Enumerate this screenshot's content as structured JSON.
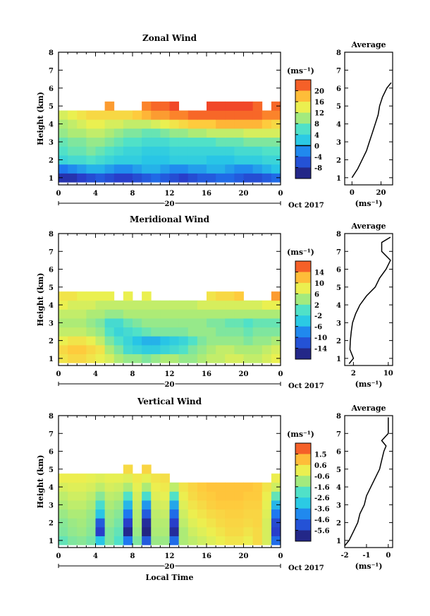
{
  "chart_data": [
    {
      "type": "heatmap",
      "title": "Zonal Wind",
      "ylabel": "Height (km)",
      "xticks": [
        "0",
        "4",
        "8",
        "12",
        "16",
        "20",
        "0"
      ],
      "xlim": [
        0,
        24
      ],
      "yticks": [
        "1",
        "2",
        "3",
        "4",
        "5",
        "6",
        "7",
        "8"
      ],
      "ylim": [
        0.6,
        8
      ],
      "date_day": "20",
      "date_label": "Oct 2017",
      "colorbar": {
        "unit": "(ms⁻¹)",
        "ticks": [
          "20",
          "16",
          "12",
          "8",
          "4",
          "0",
          "-4",
          "-8"
        ],
        "range": [
          -10,
          22
        ],
        "contour_at": "0"
      },
      "rows": [
        {
          "z": 1.0,
          "values": [
            -7,
            -7,
            -6,
            -5,
            -4,
            -5,
            -6,
            -6,
            -5,
            -4,
            -3,
            -4,
            -5,
            -6,
            -5,
            -4,
            -4,
            -3,
            -3,
            -4,
            -5,
            -5,
            -4,
            -3
          ]
        },
        {
          "z": 1.5,
          "values": [
            -2,
            -1,
            0,
            1,
            1,
            0,
            -1,
            -1,
            0,
            1,
            1,
            0,
            -1,
            -1,
            0,
            0,
            1,
            1,
            0,
            -1,
            -1,
            0,
            1,
            2
          ]
        },
        {
          "z": 2.0,
          "values": [
            4,
            5,
            5,
            6,
            5,
            4,
            3,
            3,
            3,
            2,
            2,
            2,
            3,
            3,
            3,
            3,
            2,
            2,
            2,
            3,
            3,
            3,
            4,
            4
          ]
        },
        {
          "z": 2.5,
          "values": [
            6,
            7,
            7,
            8,
            7,
            6,
            5,
            4,
            4,
            3,
            3,
            3,
            4,
            4,
            4,
            4,
            4,
            4,
            4,
            5,
            5,
            5,
            6,
            6
          ]
        },
        {
          "z": 3.0,
          "values": [
            7,
            8,
            8,
            9,
            9,
            8,
            7,
            6,
            6,
            5,
            5,
            5,
            6,
            6,
            6,
            6,
            6,
            7,
            7,
            7,
            8,
            8,
            8,
            8
          ]
        },
        {
          "z": 3.5,
          "values": [
            9,
            10,
            10,
            11,
            11,
            10,
            9,
            8,
            8,
            7,
            7,
            8,
            9,
            9,
            10,
            10,
            11,
            11,
            11,
            11,
            12,
            12,
            12,
            12
          ]
        },
        {
          "z": 4.0,
          "values": [
            10,
            11,
            12,
            13,
            13,
            12,
            12,
            11,
            11,
            11,
            12,
            13,
            14,
            15,
            16,
            16,
            16,
            17,
            17,
            17,
            17,
            17,
            16,
            15
          ]
        },
        {
          "z": 4.5,
          "values": [
            12,
            13,
            14,
            15,
            15,
            15,
            15,
            15,
            16,
            17,
            18,
            18,
            19,
            19,
            20,
            20,
            20,
            20,
            20,
            20,
            20,
            20,
            19,
            19
          ]
        },
        {
          "z": 5.0,
          "values": [
            null,
            null,
            null,
            null,
            null,
            18,
            null,
            null,
            null,
            19,
            20,
            20,
            21,
            null,
            null,
            null,
            21,
            21,
            21,
            21,
            21,
            20,
            null,
            20
          ]
        }
      ],
      "average_profile": {
        "title": "Average",
        "xlabel": "(ms⁻¹)",
        "xticks": [
          "0",
          "20"
        ],
        "xlim": [
          -5,
          28
        ],
        "yticks": [
          "1",
          "2",
          "3",
          "4",
          "5",
          "6",
          "7",
          "8"
        ],
        "heights": [
          1.0,
          1.5,
          2.0,
          2.5,
          3.0,
          3.5,
          4.0,
          4.5,
          5.0,
          5.5,
          6.0,
          6.3
        ],
        "values": [
          0,
          4,
          7,
          10,
          12,
          14,
          16,
          18,
          19,
          21,
          24,
          27
        ]
      }
    },
    {
      "type": "heatmap",
      "title": "Meridional Wind",
      "ylabel": "Height (km)",
      "xticks": [
        "0",
        "4",
        "8",
        "12",
        "16",
        "20",
        "0"
      ],
      "xlim": [
        0,
        24
      ],
      "yticks": [
        "1",
        "2",
        "3",
        "4",
        "5",
        "6",
        "7",
        "8"
      ],
      "ylim": [
        0.6,
        8
      ],
      "date_day": "20",
      "date_label": "Oct 2017",
      "colorbar": {
        "unit": "(ms⁻¹)",
        "ticks": [
          "14",
          "10",
          "6",
          "2",
          "-2",
          "-6",
          "-10",
          "-14"
        ],
        "range": [
          -16,
          16
        ],
        "contour_at": "0"
      },
      "rows": [
        {
          "z": 1.0,
          "values": [
            8,
            9,
            9,
            8,
            7,
            6,
            4,
            3,
            3,
            2,
            3,
            4,
            4,
            3,
            3,
            4,
            5,
            5,
            6,
            6,
            5,
            5,
            6,
            7
          ]
        },
        {
          "z": 1.5,
          "values": [
            9,
            10,
            10,
            9,
            8,
            4,
            2,
            -1,
            -2,
            -3,
            -3,
            -2,
            -1,
            0,
            2,
            3,
            4,
            5,
            5,
            4,
            4,
            4,
            5,
            6
          ]
        },
        {
          "z": 2.0,
          "values": [
            7,
            8,
            8,
            7,
            5,
            2,
            0,
            -2,
            -4,
            -5,
            -5,
            -4,
            -3,
            -2,
            0,
            2,
            3,
            3,
            3,
            3,
            2,
            3,
            3,
            4
          ]
        },
        {
          "z": 2.5,
          "values": [
            5,
            5,
            5,
            4,
            3,
            0,
            -2,
            -1,
            0,
            1,
            2,
            2,
            2,
            2,
            3,
            3,
            3,
            2,
            2,
            2,
            1,
            2,
            2,
            2
          ]
        },
        {
          "z": 3.0,
          "values": [
            4,
            4,
            4,
            3,
            2,
            -1,
            -1,
            1,
            2,
            3,
            3,
            3,
            3,
            3,
            3,
            3,
            2,
            2,
            1,
            1,
            0,
            1,
            1,
            1
          ]
        },
        {
          "z": 3.5,
          "values": [
            5,
            5,
            5,
            4,
            4,
            3,
            3,
            4,
            4,
            4,
            4,
            4,
            4,
            4,
            4,
            4,
            4,
            4,
            4,
            4,
            4,
            4,
            4,
            4
          ]
        },
        {
          "z": 4.0,
          "values": [
            7,
            6,
            6,
            6,
            5,
            5,
            5,
            5,
            5,
            5,
            5,
            5,
            5,
            5,
            5,
            6,
            6,
            6,
            6,
            6,
            6,
            6,
            7,
            7
          ]
        },
        {
          "z": 4.5,
          "values": [
            8,
            8,
            7,
            7,
            7,
            7,
            null,
            7,
            null,
            7,
            null,
            null,
            null,
            null,
            null,
            null,
            8,
            9,
            9,
            10,
            null,
            null,
            null,
            12
          ]
        }
      ],
      "average_profile": {
        "title": "Average",
        "xlabel": "(ms⁻¹)",
        "xticks": [
          "2",
          "10"
        ],
        "xlim": [
          0,
          11
        ],
        "yticks": [
          "1",
          "2",
          "3",
          "4",
          "5",
          "6",
          "7",
          "8"
        ],
        "heights": [
          0.7,
          1.0,
          1.5,
          2.0,
          2.5,
          3.0,
          3.5,
          4.0,
          4.5,
          5.0,
          5.5,
          6.0,
          6.5,
          7.0,
          7.5,
          7.8
        ],
        "values": [
          1.0,
          2.0,
          1.2,
          1.3,
          1.5,
          1.8,
          2.5,
          3.5,
          5.0,
          7.0,
          8.0,
          9.5,
          10.5,
          8.5,
          8.5,
          10.5
        ]
      }
    },
    {
      "type": "heatmap",
      "title": "Vertical Wind",
      "ylabel": "Height (km)",
      "xticks": [
        "0",
        "4",
        "8",
        "12",
        "16",
        "20",
        "0"
      ],
      "xlim": [
        0,
        24
      ],
      "xlabel": "Local Time",
      "yticks": [
        "1",
        "2",
        "3",
        "4",
        "5",
        "6",
        "7",
        "8"
      ],
      "ylim": [
        0.6,
        8
      ],
      "date_day": "20",
      "date_label": "Oct 2017",
      "colorbar": {
        "unit": "(ms⁻¹)",
        "ticks": [
          "1.5",
          "0.6",
          "-0.6",
          "-1.6",
          "-2.6",
          "-3.6",
          "-4.6",
          "-5.6"
        ],
        "range": [
          -6.0,
          2.0
        ],
        "contour_at": null
      },
      "rows": [
        {
          "z": 1.0,
          "values": [
            -1.8,
            -1.5,
            -1.4,
            -1.6,
            -3.0,
            -1.5,
            -2.0,
            -4.0,
            -1.5,
            -4.5,
            -1.2,
            -1.2,
            -4.2,
            -1.0,
            -0.8,
            -0.6,
            -0.4,
            -0.2,
            0.0,
            0.0,
            -0.2,
            0.2,
            -0.5,
            -4.2
          ]
        },
        {
          "z": 1.5,
          "values": [
            -1.5,
            -1.3,
            -1.2,
            -1.4,
            -5.0,
            -1.5,
            -1.8,
            -5.5,
            -1.2,
            -5.6,
            -1.0,
            -1.0,
            -5.4,
            -1.0,
            -0.6,
            -0.4,
            -0.2,
            0.0,
            0.2,
            0.2,
            0.0,
            0.2,
            -0.5,
            -5.0
          ]
        },
        {
          "z": 2.0,
          "values": [
            -1.4,
            -1.2,
            -1.1,
            -1.3,
            -4.5,
            -1.3,
            -1.6,
            -5.0,
            -1.0,
            -5.4,
            -0.9,
            -0.9,
            -5.0,
            -0.8,
            -0.4,
            -0.2,
            0.0,
            0.2,
            0.3,
            0.3,
            0.2,
            0.3,
            -0.5,
            -4.8
          ]
        },
        {
          "z": 2.5,
          "values": [
            -1.2,
            -1.0,
            -1.0,
            -1.2,
            -3.0,
            -1.2,
            -1.4,
            -4.0,
            -0.9,
            -4.5,
            -0.8,
            -0.7,
            -4.2,
            -0.6,
            -0.2,
            0.0,
            0.2,
            0.3,
            0.4,
            0.4,
            0.3,
            0.3,
            -0.4,
            -4.0
          ]
        },
        {
          "z": 3.0,
          "values": [
            -1.0,
            -0.8,
            -0.8,
            -1.0,
            -2.2,
            -1.0,
            -1.2,
            -3.2,
            -0.7,
            -3.6,
            -0.6,
            -0.5,
            -3.4,
            -0.4,
            0.0,
            0.2,
            0.4,
            0.5,
            0.5,
            0.5,
            0.4,
            0.4,
            -0.3,
            -3.2
          ]
        },
        {
          "z": 3.5,
          "values": [
            -0.8,
            -0.6,
            -0.6,
            -0.8,
            -1.4,
            -0.8,
            -0.9,
            -2.0,
            -0.5,
            -2.2,
            -0.4,
            -0.3,
            -2.0,
            -0.2,
            0.2,
            0.4,
            0.5,
            0.6,
            0.6,
            0.6,
            0.5,
            0.5,
            -0.2,
            -1.8
          ]
        },
        {
          "z": 4.0,
          "values": [
            -0.5,
            -0.4,
            -0.4,
            -0.5,
            -0.8,
            -0.5,
            -0.6,
            -1.0,
            -0.3,
            -1.0,
            -0.2,
            -0.1,
            -0.8,
            0.0,
            0.3,
            0.5,
            0.6,
            0.6,
            0.6,
            0.6,
            0.6,
            0.5,
            0.0,
            -0.6
          ]
        },
        {
          "z": 4.5,
          "values": [
            -0.2,
            -0.2,
            -0.2,
            -0.3,
            -0.4,
            -0.3,
            -0.3,
            -0.4,
            -0.1,
            -0.3,
            0.0,
            0.1,
            null,
            null,
            null,
            null,
            null,
            null,
            null,
            null,
            null,
            null,
            null,
            -0.2
          ]
        },
        {
          "z": 5.0,
          "values": [
            null,
            null,
            null,
            null,
            null,
            null,
            null,
            0.2,
            null,
            0.3,
            null,
            null,
            null,
            null,
            null,
            null,
            null,
            null,
            null,
            null,
            null,
            null,
            null,
            null
          ]
        }
      ],
      "average_profile": {
        "title": "Average",
        "xlabel": "(ms⁻¹)",
        "xticks": [
          "-2",
          "-1",
          "0"
        ],
        "xlim": [
          -2.0,
          0.2
        ],
        "yticks": [
          "1",
          "2",
          "3",
          "4",
          "5",
          "6",
          "7",
          "8"
        ],
        "heights": [
          0.7,
          1.0,
          1.5,
          2.0,
          2.5,
          3.0,
          3.5,
          4.0,
          4.5,
          5.0,
          5.5,
          6.0,
          6.3,
          6.6,
          7.0,
          7.5,
          7.9
        ],
        "values": [
          -2.0,
          -1.8,
          -1.6,
          -1.4,
          -1.3,
          -1.1,
          -1.0,
          -0.8,
          -0.6,
          -0.4,
          -0.3,
          -0.2,
          -0.1,
          -0.3,
          0.0,
          0.0,
          0.0
        ]
      }
    }
  ]
}
